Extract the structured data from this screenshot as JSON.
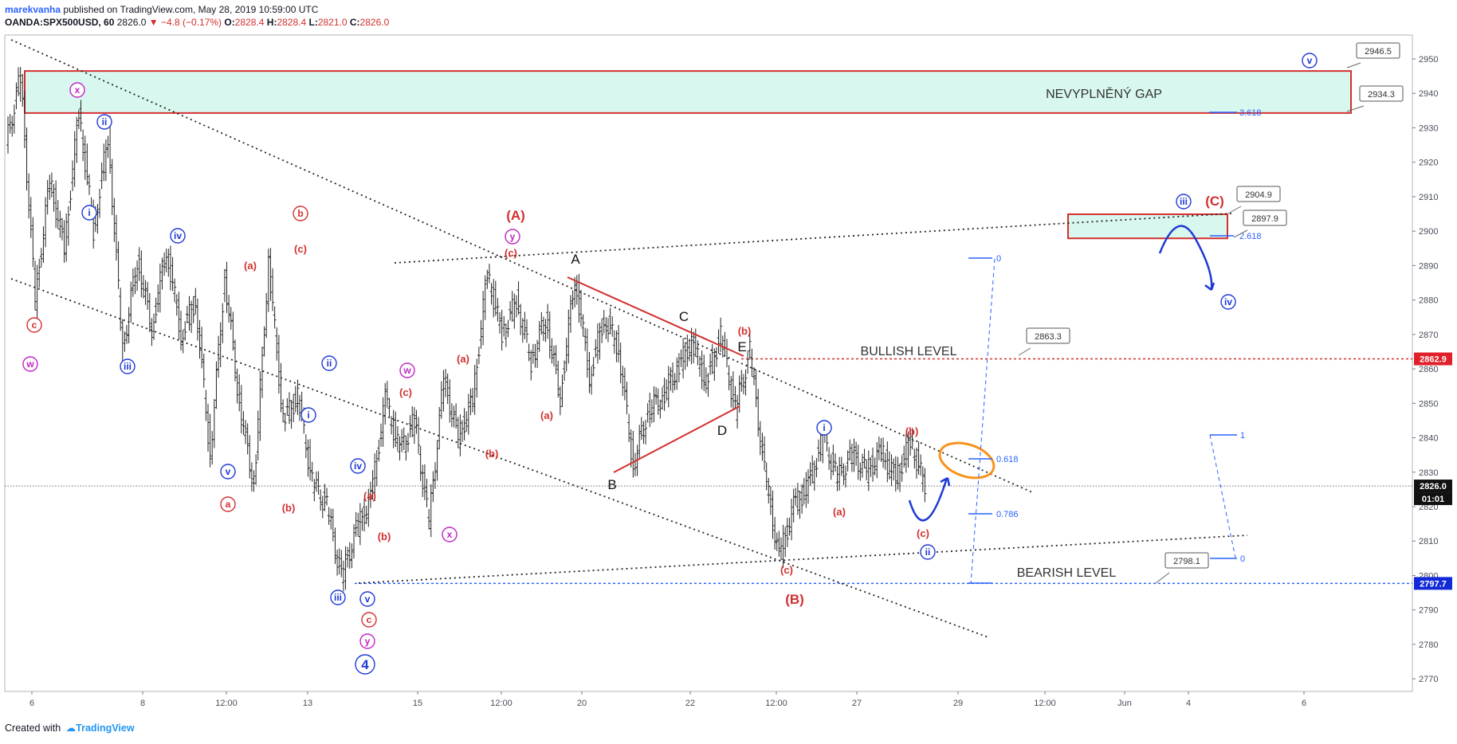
{
  "header": {
    "author": "marekvanha",
    "published": "published on TradingView.com, May 28, 2019 10:59:00 UTC",
    "symbol": "OANDA:SPX500USD, 60",
    "last": "2826.0",
    "change": "▼ −4.8 (−0.17%)",
    "o_label": "O:",
    "o_value": "2828.4",
    "h_label": "H:",
    "h_value": "2828.4",
    "l_label": "L:",
    "l_value": "2821.0",
    "c_label": "C:",
    "c_value": "2826.0"
  },
  "footer": {
    "created_with": "Created with",
    "brand": "TradingView"
  },
  "colors": {
    "red": "#d32f2f",
    "blue": "#1e3ad6",
    "magenta": "#c026c4",
    "gap_fill": "#d8f7ee",
    "dashed_blue": "#2962ff",
    "orange": "#f7941d"
  },
  "chart_data": {
    "type": "candlestick",
    "yaxis": {
      "min": 2765,
      "max": 2955,
      "ticks": [
        2770,
        2780,
        2790,
        2800,
        2810,
        2820,
        2830,
        2840,
        2850,
        2860,
        2870,
        2880,
        2890,
        2900,
        2910,
        2920,
        2930,
        2940,
        2950
      ]
    },
    "xaxis": {
      "ticks": [
        "6",
        "8",
        "12:00",
        "13",
        "15",
        "12:00",
        "20",
        "22",
        "12:00",
        "27",
        "29",
        "12:00",
        "Jun",
        "4",
        "6"
      ]
    },
    "price_tags": [
      {
        "value": 2862.9,
        "text": "2862.9",
        "style": "red"
      },
      {
        "value": 2826.0,
        "text": "2826.0",
        "style": "black"
      },
      {
        "value": 2823.3,
        "text": "01:01",
        "style": "black"
      },
      {
        "value": 2797.7,
        "text": "2797.7",
        "style": "blue"
      }
    ],
    "callouts": [
      "2946.5",
      "2934.3",
      "2904.9",
      "2897.9",
      "2863.3",
      "2798.1"
    ],
    "zone_labels": {
      "gap": "NEVYPLNĚNÝ GAP",
      "bullish": "BULLISH LEVEL",
      "bearish": "BEARISH LEVEL"
    },
    "fib_labels": [
      "3.618",
      "2.618",
      "0",
      "0.618",
      "0.786",
      "1",
      "0"
    ],
    "wave_labels": [
      {
        "t": "x",
        "c": "magenta",
        "circ": true
      },
      {
        "t": "ii",
        "c": "blue",
        "circ": true
      },
      {
        "t": "i",
        "c": "blue",
        "circ": true
      },
      {
        "t": "c",
        "c": "red",
        "circ": true
      },
      {
        "t": "w",
        "c": "magenta",
        "circ": true
      },
      {
        "t": "iii",
        "c": "blue",
        "circ": true
      },
      {
        "t": "iv",
        "c": "blue",
        "circ": true
      },
      {
        "t": "v",
        "c": "blue",
        "circ": true
      },
      {
        "t": "a",
        "c": "red",
        "circ": true
      },
      {
        "t": "b",
        "c": "red",
        "circ": true
      },
      {
        "t": "(c)",
        "c": "red",
        "circ": false
      },
      {
        "t": "(a)",
        "c": "red",
        "circ": false
      },
      {
        "t": "(b)",
        "c": "red",
        "circ": false
      },
      {
        "t": "ii",
        "c": "blue",
        "circ": true
      },
      {
        "t": "i",
        "c": "blue",
        "circ": true
      },
      {
        "t": "iv",
        "c": "blue",
        "circ": true
      },
      {
        "t": "iii",
        "c": "blue",
        "circ": true
      },
      {
        "t": "v",
        "c": "blue",
        "circ": true
      },
      {
        "t": "c",
        "c": "red",
        "circ": true
      },
      {
        "t": "y",
        "c": "magenta",
        "circ": true
      },
      {
        "t": "4",
        "c": "blue",
        "circ": true
      },
      {
        "t": "(a)",
        "c": "red",
        "circ": false
      },
      {
        "t": "(b)",
        "c": "red",
        "circ": false
      },
      {
        "t": "(c)",
        "c": "red",
        "circ": false
      },
      {
        "t": "w",
        "c": "magenta",
        "circ": true
      },
      {
        "t": "x",
        "c": "magenta",
        "circ": true
      },
      {
        "t": "(a)",
        "c": "red",
        "circ": false
      },
      {
        "t": "(b)",
        "c": "red",
        "circ": false
      },
      {
        "t": "(A)",
        "c": "red",
        "circ": false
      },
      {
        "t": "y",
        "c": "magenta",
        "circ": true
      },
      {
        "t": "(c)",
        "c": "red",
        "circ": false
      },
      {
        "t": "(a)",
        "c": "red",
        "circ": false
      },
      {
        "t": "A",
        "c": "black",
        "circ": false
      },
      {
        "t": "B",
        "c": "black",
        "circ": false
      },
      {
        "t": "C",
        "c": "black",
        "circ": false
      },
      {
        "t": "D",
        "c": "black",
        "circ": false
      },
      {
        "t": "E",
        "c": "black",
        "circ": false
      },
      {
        "t": "(b)",
        "c": "red",
        "circ": false
      },
      {
        "t": "(c)",
        "c": "red",
        "circ": false
      },
      {
        "t": "(B)",
        "c": "red",
        "circ": false
      },
      {
        "t": "i",
        "c": "blue",
        "circ": true
      },
      {
        "t": "(a)",
        "c": "red",
        "circ": false
      },
      {
        "t": "(b)",
        "c": "red",
        "circ": false
      },
      {
        "t": "(c)",
        "c": "red",
        "circ": false
      },
      {
        "t": "ii",
        "c": "blue",
        "circ": true
      },
      {
        "t": "iii",
        "c": "blue",
        "circ": true
      },
      {
        "t": "(C)",
        "c": "red",
        "circ": false
      },
      {
        "t": "iv",
        "c": "blue",
        "circ": true
      },
      {
        "t": "v",
        "c": "blue",
        "circ": true
      }
    ],
    "price_path": [
      [
        0,
        2925
      ],
      [
        1,
        2945
      ],
      [
        2,
        2880
      ],
      [
        3,
        2915
      ],
      [
        4,
        2895
      ],
      [
        5,
        2935
      ],
      [
        6,
        2900
      ],
      [
        7,
        2928
      ],
      [
        8,
        2865
      ],
      [
        9,
        2892
      ],
      [
        10,
        2872
      ],
      [
        11,
        2895
      ],
      [
        12,
        2870
      ],
      [
        13,
        2880
      ],
      [
        14,
        2835
      ],
      [
        15,
        2887
      ],
      [
        16,
        2850
      ],
      [
        17,
        2826
      ],
      [
        18,
        2891
      ],
      [
        19,
        2845
      ],
      [
        20,
        2852
      ],
      [
        21,
        2827
      ],
      [
        22,
        2820
      ],
      [
        23,
        2799
      ],
      [
        24,
        2813
      ],
      [
        25,
        2822
      ],
      [
        26,
        2851
      ],
      [
        27,
        2836
      ],
      [
        28,
        2845
      ],
      [
        29,
        2815
      ],
      [
        30,
        2857
      ],
      [
        31,
        2840
      ],
      [
        32,
        2851
      ],
      [
        33,
        2888
      ],
      [
        34,
        2870
      ],
      [
        35,
        2880
      ],
      [
        36,
        2862
      ],
      [
        37,
        2875
      ],
      [
        38,
        2852
      ],
      [
        39,
        2887
      ],
      [
        40,
        2858
      ],
      [
        41,
        2875
      ],
      [
        42,
        2866
      ],
      [
        43,
        2832
      ],
      [
        44,
        2848
      ],
      [
        45,
        2852
      ],
      [
        46,
        2860
      ],
      [
        47,
        2868
      ],
      [
        48,
        2856
      ],
      [
        49,
        2870
      ],
      [
        50,
        2848
      ],
      [
        51,
        2865
      ],
      [
        52,
        2830
      ],
      [
        53,
        2805
      ],
      [
        54,
        2820
      ],
      [
        55,
        2826
      ],
      [
        56,
        2840
      ],
      [
        57,
        2828
      ],
      [
        58,
        2835
      ],
      [
        59,
        2830
      ],
      [
        60,
        2836
      ],
      [
        61,
        2828
      ],
      [
        62,
        2839
      ],
      [
        63,
        2826
      ]
    ]
  }
}
